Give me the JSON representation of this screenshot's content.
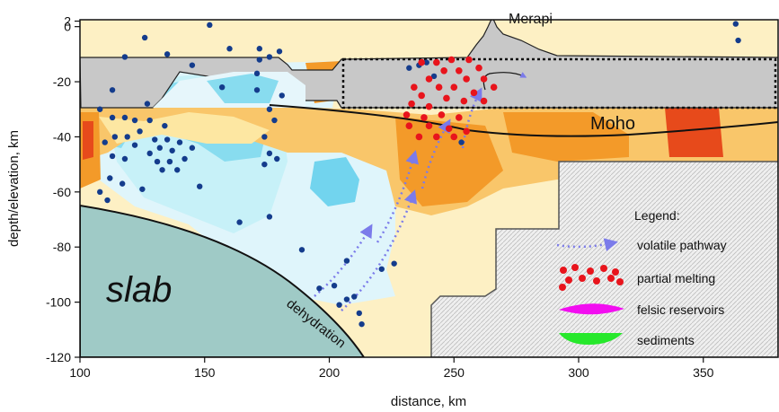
{
  "chart_data": {
    "type": "cross-section",
    "xlabel": "distance, km",
    "ylabel": "depth/elevation, km",
    "xlim": [
      100,
      380
    ],
    "ylim": [
      -120,
      2.5
    ],
    "x_ticks": [
      100,
      150,
      200,
      250,
      300,
      350
    ],
    "y_ticks": [
      2,
      0,
      -20,
      -40,
      -60,
      -80,
      -100,
      -120
    ],
    "labels": {
      "volcano": "Merapi",
      "moho": "Moho",
      "slab": "slab",
      "dehydration": "dehydration"
    },
    "legend": {
      "title": "Legend:",
      "items": [
        {
          "label": "volatile pathway",
          "symbol": "dotted-arrow",
          "color": "#7b7bea"
        },
        {
          "label": "partial melting",
          "symbol": "red-dots",
          "color": "#e8141c"
        },
        {
          "label": "felsic reservoirs",
          "symbol": "magenta-lens",
          "color": "#f20ef0"
        },
        {
          "label": "sediments",
          "symbol": "green-lens",
          "color": "#26e82b"
        }
      ]
    },
    "colors": {
      "slab": "#9fcac6",
      "topography": "#c8c8c8",
      "earthquakes": "#143c8c",
      "partial_melting": "#e8141c",
      "volatile_pathway": "#7b7bea",
      "masked_region": "#ececec"
    },
    "earthquakes": [
      [
        152,
        0.6
      ],
      [
        118,
        -11
      ],
      [
        113,
        -23
      ],
      [
        127,
        -28
      ],
      [
        108,
        -30
      ],
      [
        113,
        -33
      ],
      [
        118,
        -33
      ],
      [
        122,
        -34
      ],
      [
        128,
        -34
      ],
      [
        134,
        -36
      ],
      [
        124,
        -38
      ],
      [
        114,
        -40
      ],
      [
        119,
        -40
      ],
      [
        130,
        -41
      ],
      [
        135,
        -41
      ],
      [
        140,
        -42
      ],
      [
        110,
        -42
      ],
      [
        122,
        -43
      ],
      [
        132,
        -44
      ],
      [
        137,
        -45
      ],
      [
        145,
        -44
      ],
      [
        128,
        -46
      ],
      [
        113,
        -47
      ],
      [
        118,
        -48
      ],
      [
        131,
        -49
      ],
      [
        136,
        -49
      ],
      [
        142,
        -48
      ],
      [
        133,
        -52
      ],
      [
        139,
        -52
      ],
      [
        112,
        -55
      ],
      [
        117,
        -57
      ],
      [
        125,
        -59
      ],
      [
        108,
        -60
      ],
      [
        111,
        -63
      ],
      [
        148,
        -58
      ],
      [
        176,
        -30
      ],
      [
        178,
        -34
      ],
      [
        174,
        -40
      ],
      [
        176,
        -46
      ],
      [
        179,
        -48
      ],
      [
        174,
        -50
      ],
      [
        171,
        -17
      ],
      [
        171,
        -23
      ],
      [
        172,
        -12
      ],
      [
        176,
        -11
      ],
      [
        172,
        -8
      ],
      [
        180,
        -9
      ],
      [
        181,
        -25
      ],
      [
        164,
        -71
      ],
      [
        176,
        -69
      ],
      [
        189,
        -81
      ],
      [
        207,
        -85
      ],
      [
        226,
        -86
      ],
      [
        221,
        -88
      ],
      [
        202,
        -94
      ],
      [
        207,
        -99
      ],
      [
        196,
        -95
      ],
      [
        210,
        -98
      ],
      [
        204,
        -101
      ],
      [
        212,
        -104
      ],
      [
        213,
        -108
      ],
      [
        236,
        -14
      ],
      [
        232,
        -15
      ],
      [
        239,
        -13
      ],
      [
        242,
        -18
      ],
      [
        253,
        -42
      ],
      [
        135,
        -10
      ],
      [
        145,
        -14
      ],
      [
        126,
        -4
      ],
      [
        157,
        -22
      ],
      [
        160,
        -8
      ],
      [
        363,
        1
      ],
      [
        364,
        -5
      ]
    ],
    "melt_points": [
      [
        237,
        -13
      ],
      [
        243,
        -13
      ],
      [
        249,
        -12
      ],
      [
        256,
        -12
      ],
      [
        260,
        -15
      ],
      [
        246,
        -16
      ],
      [
        252,
        -16
      ],
      [
        240,
        -19
      ],
      [
        255,
        -19
      ],
      [
        262,
        -19
      ],
      [
        234,
        -22
      ],
      [
        244,
        -22
      ],
      [
        250,
        -22
      ],
      [
        258,
        -24
      ],
      [
        266,
        -22
      ],
      [
        237,
        -25
      ],
      [
        247,
        -26
      ],
      [
        254,
        -27
      ],
      [
        262,
        -27
      ],
      [
        233,
        -28
      ],
      [
        240,
        -29
      ],
      [
        231,
        -32
      ],
      [
        238,
        -33
      ],
      [
        245,
        -32
      ],
      [
        252,
        -33
      ],
      [
        232,
        -36
      ],
      [
        240,
        -36
      ],
      [
        248,
        -37
      ],
      [
        236,
        -40
      ],
      [
        243,
        -40
      ],
      [
        250,
        -40
      ],
      [
        255,
        -38
      ]
    ]
  }
}
